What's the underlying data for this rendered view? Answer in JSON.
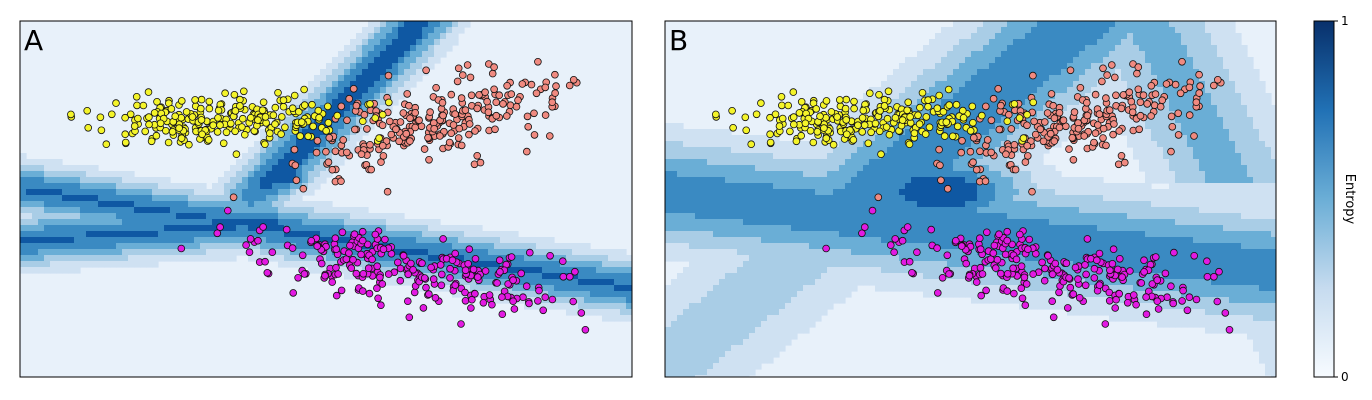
{
  "chart_data": [
    {
      "type": "scatter",
      "panel_label": "A",
      "background": "entropy-contour",
      "contour_colors": [
        "#e8f1fa",
        "#cfe1f2",
        "#a9cde6",
        "#6aaed6",
        "#3a8ac2",
        "#0f58a3"
      ],
      "series": [
        {
          "color": "#f4f42a",
          "cluster": {
            "cx": 0.33,
            "cy": 0.28,
            "sx": 0.11,
            "sy": 0.035,
            "n": 260,
            "tilt": -0.05
          }
        },
        {
          "color": "#f08a80",
          "cluster": {
            "cx": 0.66,
            "cy": 0.29,
            "sx": 0.11,
            "sy": 0.06,
            "n": 260,
            "tilt": -0.35
          }
        },
        {
          "color": "#e21ae2",
          "cluster": {
            "cx": 0.64,
            "cy": 0.7,
            "sx": 0.13,
            "sy": 0.045,
            "n": 260,
            "tilt": 0.28
          }
        }
      ]
    },
    {
      "type": "scatter",
      "panel_label": "B",
      "background": "entropy-contour",
      "contour_colors": [
        "#e8f1fa",
        "#cfe1f2",
        "#a9cde6",
        "#6aaed6",
        "#3a8ac2",
        "#0f58a3"
      ],
      "series": [
        {
          "color": "#f4f42a",
          "cluster": {
            "cx": 0.33,
            "cy": 0.28,
            "sx": 0.11,
            "sy": 0.035,
            "n": 260,
            "tilt": -0.05
          }
        },
        {
          "color": "#f08a80",
          "cluster": {
            "cx": 0.66,
            "cy": 0.29,
            "sx": 0.11,
            "sy": 0.06,
            "n": 260,
            "tilt": -0.35
          }
        },
        {
          "color": "#e21ae2",
          "cluster": {
            "cx": 0.64,
            "cy": 0.7,
            "sx": 0.13,
            "sy": 0.045,
            "n": 260,
            "tilt": 0.28
          }
        }
      ]
    }
  ],
  "colorbar": {
    "label": "Entropy",
    "min_label": "0",
    "max_label": "1",
    "colors": [
      "#e8f1fa",
      "#cfe1f2",
      "#a9cde6",
      "#6aaed6",
      "#3a8ac2",
      "#0f58a3"
    ]
  }
}
